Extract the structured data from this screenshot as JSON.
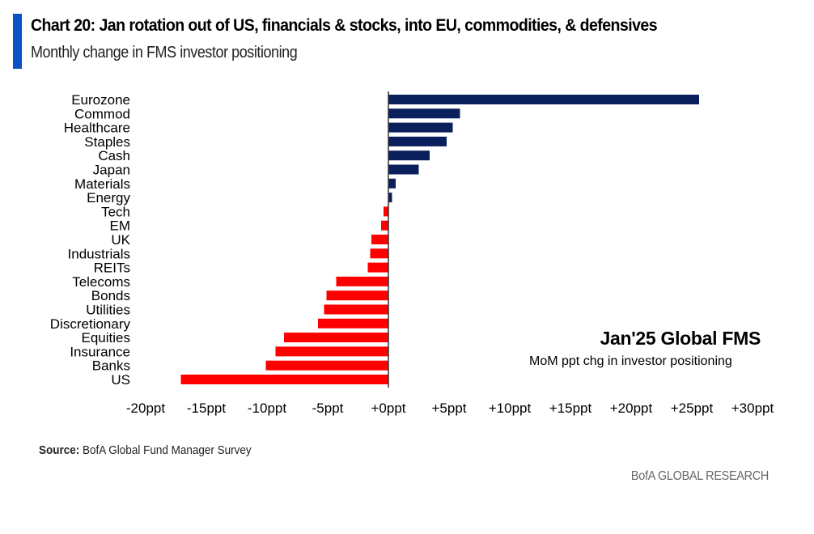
{
  "header": {
    "title": "Chart 20: Jan rotation out of US, financials & stocks, into EU, commodities, & defensives",
    "subtitle": "Monthly change in FMS investor positioning"
  },
  "annotation": {
    "title": "Jan'25 Global FMS",
    "subtitle": "MoM ppt chg in investor positioning"
  },
  "footer": {
    "source_label": "Source:",
    "source_text": "BofA Global Fund Manager Survey",
    "brand": "BofA GLOBAL RESEARCH"
  },
  "colors": {
    "positive": "#0a1f5c",
    "negative": "#ff0000",
    "accent": "#0a52c8"
  },
  "chart_data": {
    "type": "bar",
    "orientation": "horizontal",
    "title": "Chart 20: Jan rotation out of US, financials & stocks, into EU, commodities, & defensives",
    "subtitle": "Monthly change in FMS investor positioning",
    "xlabel": "",
    "ylabel": "",
    "xlim": [
      -20,
      30
    ],
    "x_tick_values": [
      -20,
      -15,
      -10,
      -5,
      0,
      5,
      10,
      15,
      20,
      25,
      30
    ],
    "x_tick_labels": [
      "-20ppt",
      "-15ppt",
      "-10ppt",
      "-5ppt",
      "+0ppt",
      "+5ppt",
      "+10ppt",
      "+15ppt",
      "+20ppt",
      "+25ppt",
      "+30ppt"
    ],
    "grid": false,
    "legend": "none",
    "categories": [
      "Eurozone",
      "Commod",
      "Healthcare",
      "Staples",
      "Cash",
      "Japan",
      "Materials",
      "Energy",
      "Tech",
      "EM",
      "UK",
      "Industrials",
      "REITs",
      "Telecoms",
      "Bonds",
      "Utilities",
      "Discretionary",
      "Equities",
      "Insurance",
      "Banks",
      "US"
    ],
    "values": [
      25.6,
      5.9,
      5.3,
      4.8,
      3.4,
      2.5,
      0.6,
      0.3,
      -0.4,
      -0.6,
      -1.4,
      -1.5,
      -1.7,
      -4.3,
      -5.1,
      -5.3,
      -5.8,
      -8.6,
      -9.3,
      -10.1,
      -17.1
    ],
    "units": "ppt"
  }
}
